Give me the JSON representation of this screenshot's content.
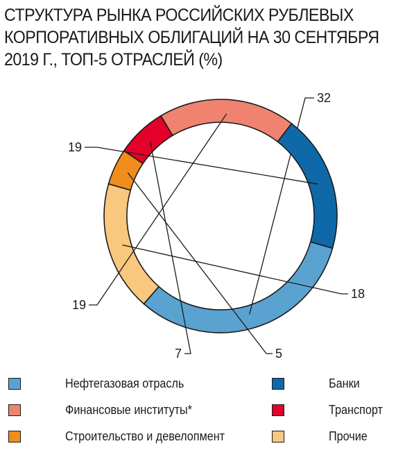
{
  "title": {
    "line1": "СТРУКТУРА РЫНКА РОССИЙСКИХ РУБЛЕВЫХ",
    "line2": "КОРПОРАТИВНЫХ ОБЛИГАЦИЙ НА 30 СЕНТЯБРЯ",
    "line3": "2019 Г., ТОП-5 ОТРАСЛЕЙ (%)"
  },
  "chart_data": {
    "type": "pie",
    "subtype": "donut",
    "title": "СТРУКТУРА РЫНКА РОССИЙСКИХ РУБЛЕВЫХ КОРПОРАТИВНЫХ ОБЛИГАЦИЙ НА 30 СЕНТЯБРЯ 2019 Г., ТОП-5 ОТРАСЛЕЙ (%)",
    "slices": [
      {
        "label": "Нефтегазовая отрасль",
        "value": 32,
        "display": "32",
        "color": "#5aa3d0"
      },
      {
        "label": "Прочие",
        "value": 18,
        "display": "18",
        "color": "#f9c77e"
      },
      {
        "label": "Строительство и девелопмент",
        "value": 5,
        "display": "5",
        "color": "#f08d1c"
      },
      {
        "label": "Транспорт",
        "value": 7,
        "display": "7",
        "color": "#e4002b"
      },
      {
        "label": "Финансовые институты*",
        "value": 19,
        "display": "19",
        "color": "#ef8370"
      },
      {
        "label": "Банки",
        "value": 19,
        "display": "19",
        "color": "#0f69a8"
      }
    ],
    "legend_placement": "bottom"
  },
  "legend": [
    {
      "label": "Нефтегазовая отрасль",
      "color": "#5aa3d0"
    },
    {
      "label": "Банки",
      "color": "#0f69a8"
    },
    {
      "label": "Финансовые институты*",
      "color": "#ef8370"
    },
    {
      "label": "Транспорт",
      "color": "#e4002b"
    },
    {
      "label": "Строительство и девелопмент",
      "color": "#f08d1c"
    },
    {
      "label": "Прочие",
      "color": "#f9c77e"
    }
  ]
}
